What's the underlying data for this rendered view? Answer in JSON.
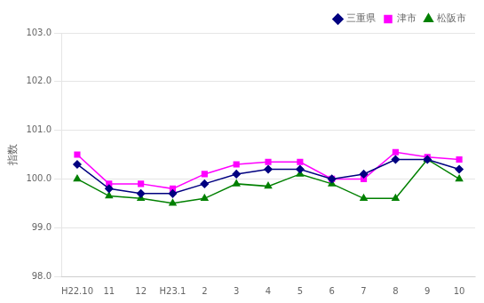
{
  "chart_data": {
    "type": "line",
    "categories": [
      "H22.10",
      "11",
      "12",
      "H23.1",
      "2",
      "3",
      "4",
      "5",
      "6",
      "7",
      "8",
      "9",
      "10"
    ],
    "series": [
      {
        "name": "三重県",
        "color": "#000080",
        "marker": "diamond",
        "values": [
          100.3,
          99.8,
          99.7,
          99.7,
          99.9,
          100.1,
          100.2,
          100.2,
          100.0,
          100.1,
          100.4,
          100.4,
          100.2
        ]
      },
      {
        "name": "津市",
        "color": "#ff00ff",
        "marker": "square",
        "values": [
          100.5,
          99.9,
          99.9,
          99.8,
          100.1,
          100.3,
          100.35,
          100.35,
          100.0,
          100.0,
          100.55,
          100.45,
          100.4
        ]
      },
      {
        "name": "松阪市",
        "color": "#008000",
        "marker": "triangle",
        "values": [
          100.0,
          99.65,
          99.6,
          99.5,
          99.6,
          99.9,
          99.85,
          100.1,
          99.9,
          99.6,
          99.6,
          100.4,
          100.0
        ]
      }
    ],
    "ylabel": "指数",
    "ylim": [
      98.0,
      103.0
    ],
    "yticks": [
      {
        "value": 98,
        "label": "98.0"
      },
      {
        "value": 99,
        "label": "99.0"
      },
      {
        "value": 100,
        "label": "100.0"
      },
      {
        "value": 101,
        "label": "101.0"
      },
      {
        "value": 102,
        "label": "102.0"
      },
      {
        "value": 103,
        "label": "103.0"
      }
    ],
    "grid": "y",
    "legend": "upper right"
  }
}
